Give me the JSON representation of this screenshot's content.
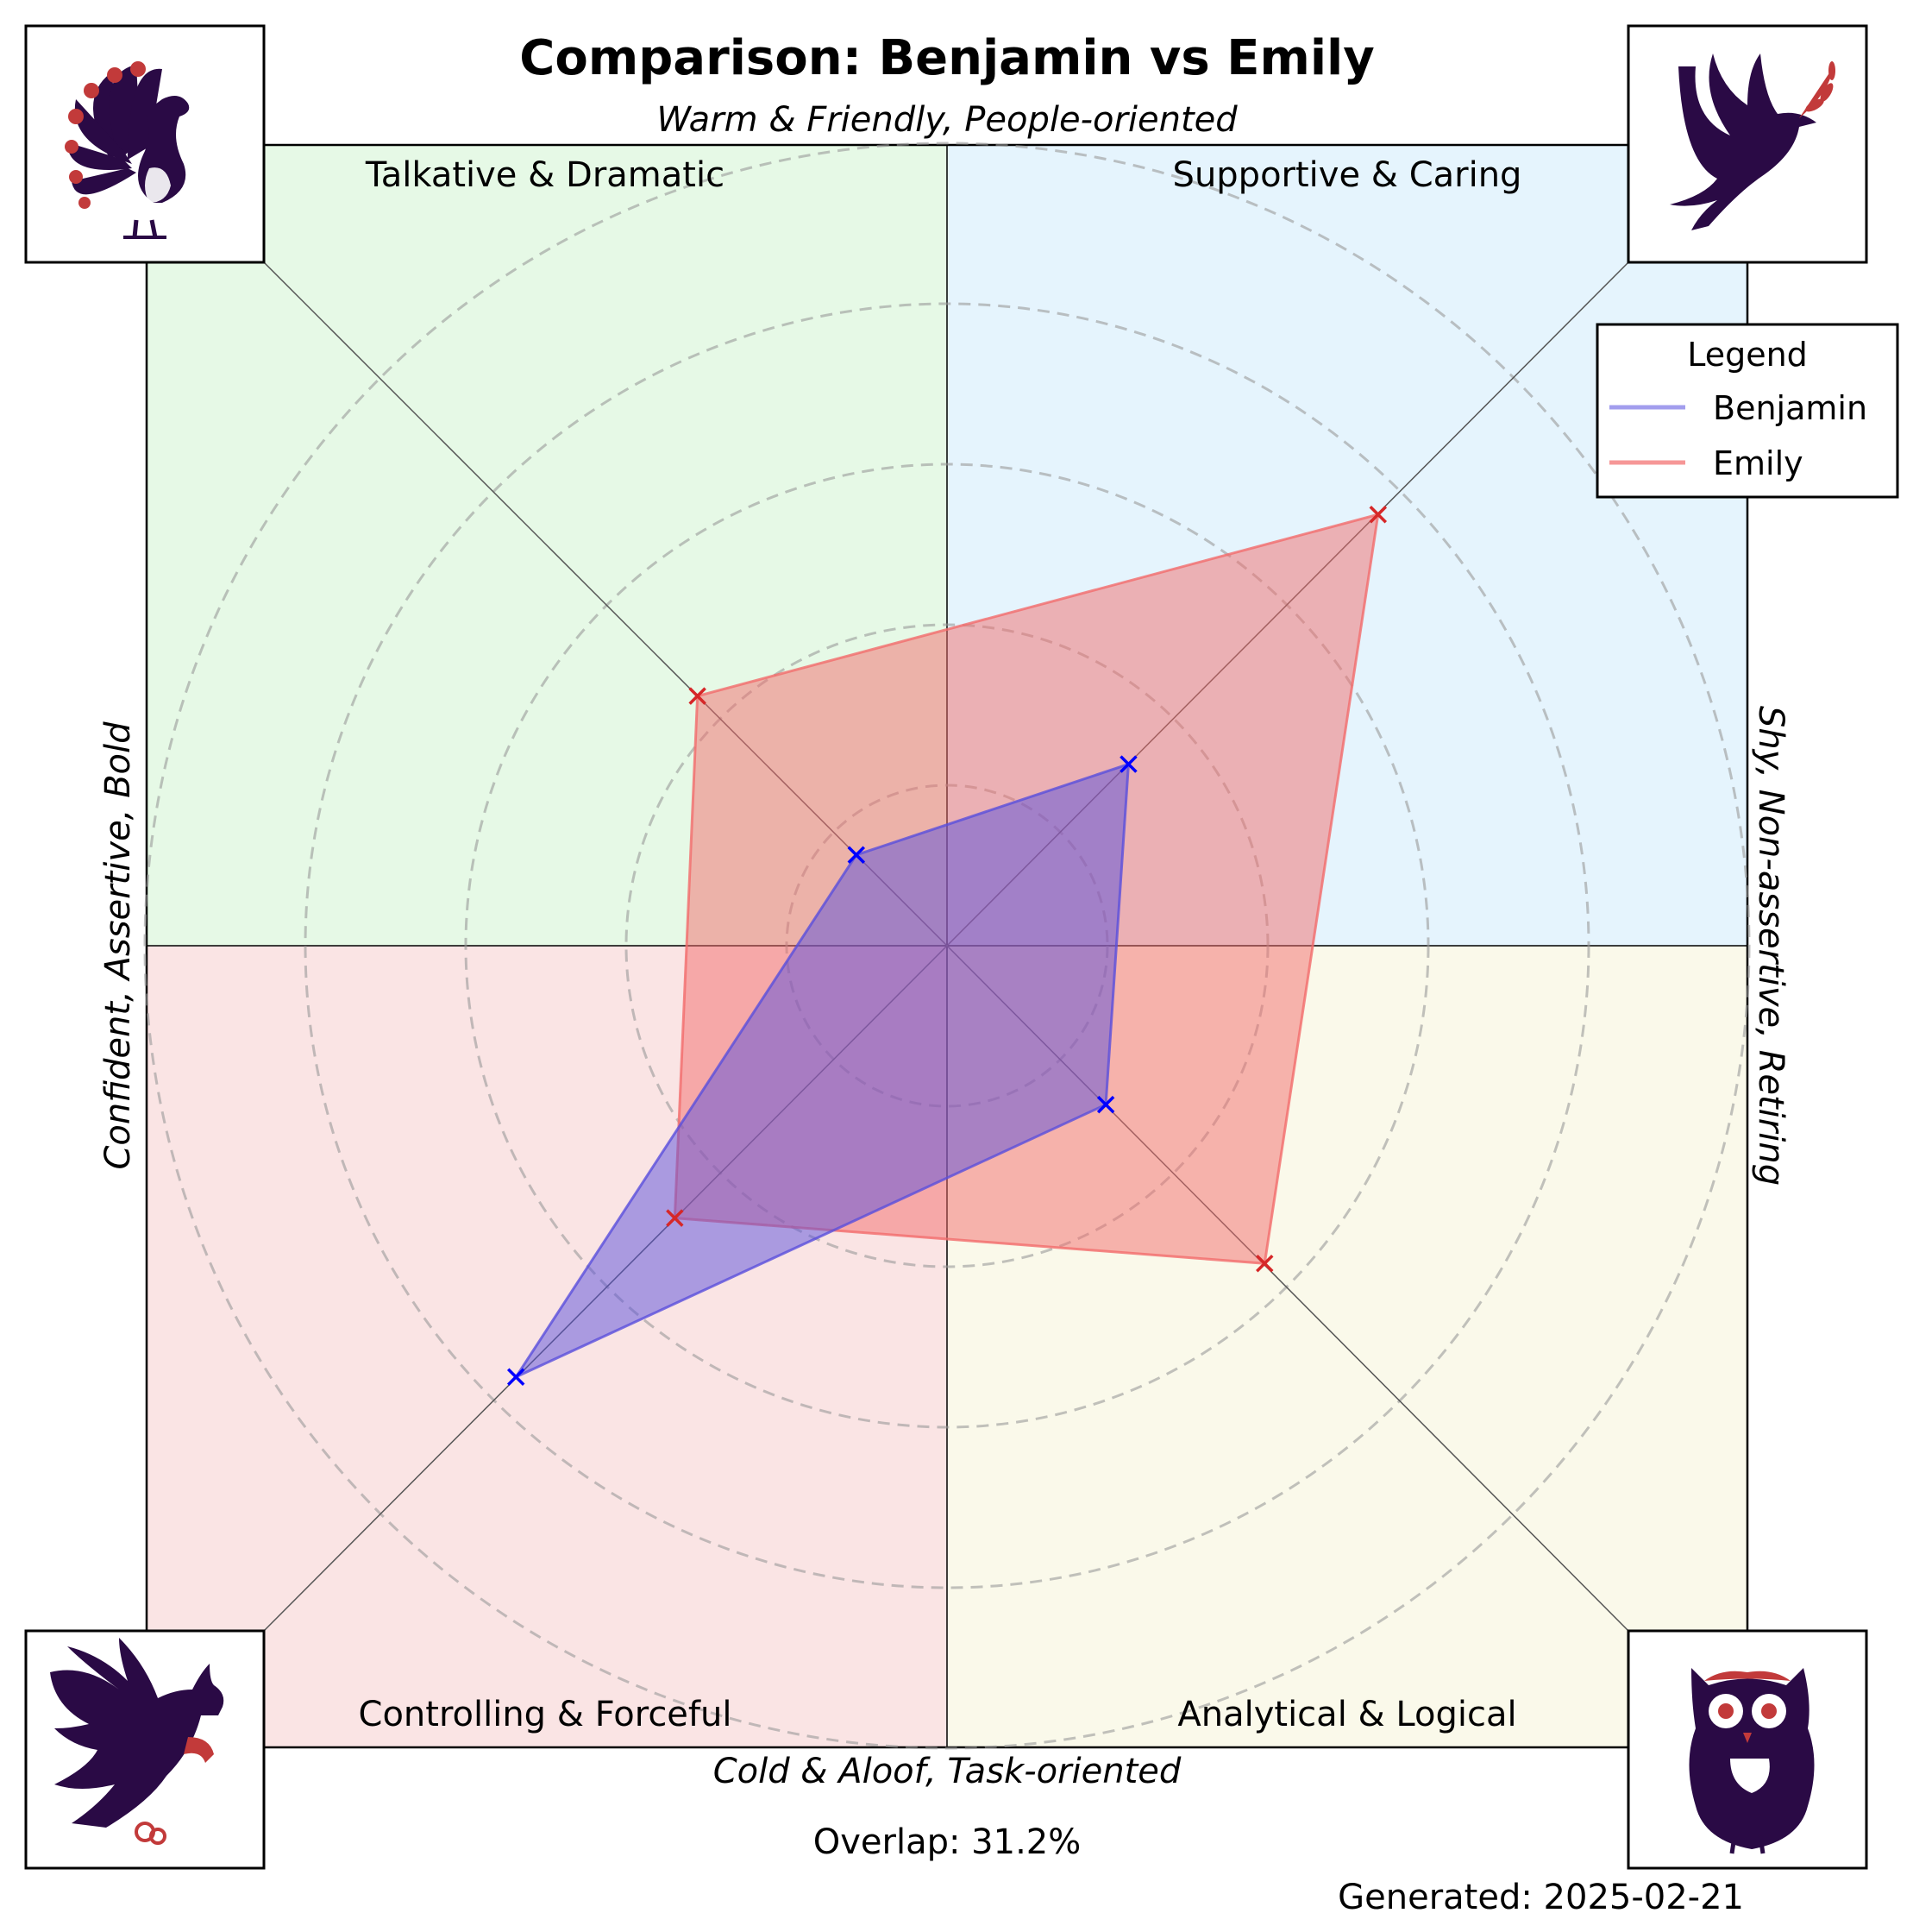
{
  "chart_data": {
    "type": "radar",
    "title": "Comparison: Benjamin vs Emily",
    "axes": {
      "top": "Warm & Friendly, People-oriented",
      "bottom": "Cold & Aloof, Task-oriented",
      "left": "Confident, Assertive, Bold",
      "right": "Shy, Non-assertive, Retiring"
    },
    "quadrants": {
      "top_left": {
        "label": "Talkative & Dramatic",
        "color": "#e6f9e6",
        "icon": "peacock-icon"
      },
      "top_right": {
        "label": "Supportive & Caring",
        "color": "#e5f4fd",
        "icon": "dove-icon"
      },
      "bottom_left": {
        "label": "Controlling & Forceful",
        "color": "#fae4e4",
        "icon": "eagle-icon"
      },
      "bottom_right": {
        "label": "Analytical & Logical",
        "color": "#faf9ea",
        "icon": "owl-icon"
      }
    },
    "rlim": [
      0,
      5
    ],
    "ring_values": [
      1,
      2,
      3,
      4,
      5
    ],
    "axis_order": [
      "Supportive & Caring",
      "Talkative & Dramatic",
      "Controlling & Forceful",
      "Analytical & Logical"
    ],
    "series": [
      {
        "name": "Benjamin",
        "values": [
          1.6,
          0.8,
          3.8,
          1.4
        ],
        "color": "#0000ff",
        "fill": "#5a4fdc"
      },
      {
        "name": "Emily",
        "values": [
          3.8,
          2.2,
          2.4,
          2.8
        ],
        "color": "#d62728",
        "fill": "#f26b6b"
      }
    ],
    "legend": {
      "title": "Legend",
      "position": "top-right"
    },
    "grid": true,
    "overlap_text": "Overlap: 31.2%",
    "generated_text": "Generated: 2025-02-21"
  }
}
